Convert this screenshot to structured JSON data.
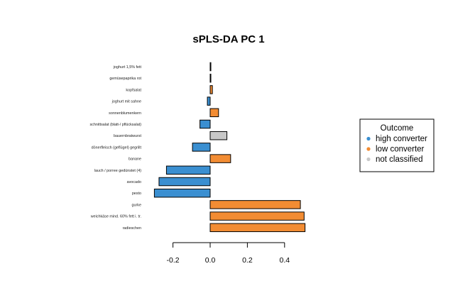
{
  "chart_data": {
    "type": "bar",
    "orientation": "horizontal",
    "title": "sPLS-DA PC 1",
    "xlabel": "",
    "ylabel": "",
    "xlim": [
      -0.29,
      0.51
    ],
    "x_ticks": [
      -0.2,
      0.0,
      0.2,
      0.4
    ],
    "x_tick_labels": [
      "-0.2",
      "0.0",
      "0.2",
      "0.4"
    ],
    "grid": false,
    "bars": [
      {
        "label": "joghurt 1,5% fett",
        "value": 0.002,
        "class": "high converter"
      },
      {
        "label": "gemüsepaprika rot",
        "value": 0.001,
        "class": "high converter"
      },
      {
        "label": "kopfsalat",
        "value": 0.012,
        "class": "low converter"
      },
      {
        "label": "joghurt mit sahne",
        "value": -0.015,
        "class": "high converter"
      },
      {
        "label": "sonnenblumenkern",
        "value": 0.045,
        "class": "low converter"
      },
      {
        "label": "schnittsalat (blatt-/ pflücksalat)",
        "value": -0.055,
        "class": "high converter"
      },
      {
        "label": "bauernbratwurst",
        "value": 0.09,
        "class": "not classified"
      },
      {
        "label": "dönerfleisch (geflügel) gegrillt",
        "value": -0.095,
        "class": "high converter"
      },
      {
        "label": "banane",
        "value": 0.11,
        "class": "low converter"
      },
      {
        "label": "lauch / porree gedünstet (4)",
        "value": -0.235,
        "class": "high converter"
      },
      {
        "label": "avocado",
        "value": -0.275,
        "class": "high converter"
      },
      {
        "label": "pesto",
        "value": -0.3,
        "class": "high converter"
      },
      {
        "label": "gurke",
        "value": 0.485,
        "class": "low converter"
      },
      {
        "label": "weichkäse mind. 60% fett i. tr.",
        "value": 0.505,
        "class": "low converter"
      },
      {
        "label": "radieschen",
        "value": 0.51,
        "class": "low converter"
      }
    ],
    "legend": {
      "title": "Outcome",
      "position": "right",
      "entries": [
        {
          "label": "high converter",
          "color": "#3a8fd1"
        },
        {
          "label": "low converter",
          "color": "#f28c33"
        },
        {
          "label": "not classified",
          "color": "#c8c8c8"
        }
      ]
    },
    "colors": {
      "high converter": "#3a8fd1",
      "low converter": "#f28c33",
      "not classified": "#c8c8c8"
    }
  }
}
